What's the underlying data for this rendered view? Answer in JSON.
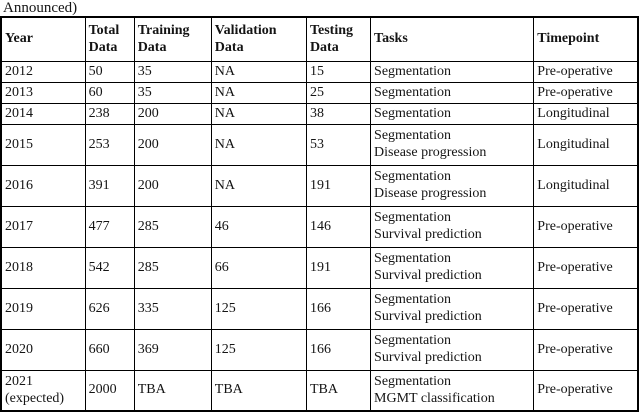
{
  "caption_fragment": "Announced)",
  "colors": {
    "border": "#000000",
    "text": "#141414",
    "background": "#ffffff"
  },
  "table": {
    "headers": [
      "Year",
      "Total\nData",
      "Training\nData",
      "Validation\nData",
      "Testing\nData",
      "Tasks",
      "Timepoint"
    ],
    "rows": [
      {
        "year": "2012",
        "total": "50",
        "training": "35",
        "validation": "NA",
        "testing": "15",
        "tasks": "Segmentation",
        "timepoint": "Pre-operative"
      },
      {
        "year": "2013",
        "total": "60",
        "training": "35",
        "validation": "NA",
        "testing": "25",
        "tasks": "Segmentation",
        "timepoint": "Pre-operative"
      },
      {
        "year": "2014",
        "total": "238",
        "training": "200",
        "validation": "NA",
        "testing": "38",
        "tasks": "Segmentation",
        "timepoint": "Longitudinal"
      },
      {
        "year": "2015",
        "total": "253",
        "training": "200",
        "validation": "NA",
        "testing": "53",
        "tasks": "Segmentation\nDisease progression",
        "timepoint": "Longitudinal"
      },
      {
        "year": "2016",
        "total": "391",
        "training": "200",
        "validation": "NA",
        "testing": "191",
        "tasks": "Segmentation\nDisease progression",
        "timepoint": "Longitudinal"
      },
      {
        "year": "2017",
        "total": "477",
        "training": "285",
        "validation": "46",
        "testing": "146",
        "tasks": "Segmentation\nSurvival prediction",
        "timepoint": "Pre-operative"
      },
      {
        "year": "2018",
        "total": "542",
        "training": "285",
        "validation": "66",
        "testing": "191",
        "tasks": "Segmentation\nSurvival prediction",
        "timepoint": "Pre-operative"
      },
      {
        "year": "2019",
        "total": "626",
        "training": "335",
        "validation": "125",
        "testing": "166",
        "tasks": "Segmentation\nSurvival prediction",
        "timepoint": "Pre-operative"
      },
      {
        "year": "2020",
        "total": "660",
        "training": "369",
        "validation": "125",
        "testing": "166",
        "tasks": "Segmentation\nSurvival prediction",
        "timepoint": "Pre-operative"
      },
      {
        "year": "2021\n(expected)",
        "total": "2000",
        "training": "TBA",
        "validation": "TBA",
        "testing": "TBA",
        "tasks": "Segmentation\nMGMT classification",
        "timepoint": "Pre-operative"
      }
    ]
  }
}
